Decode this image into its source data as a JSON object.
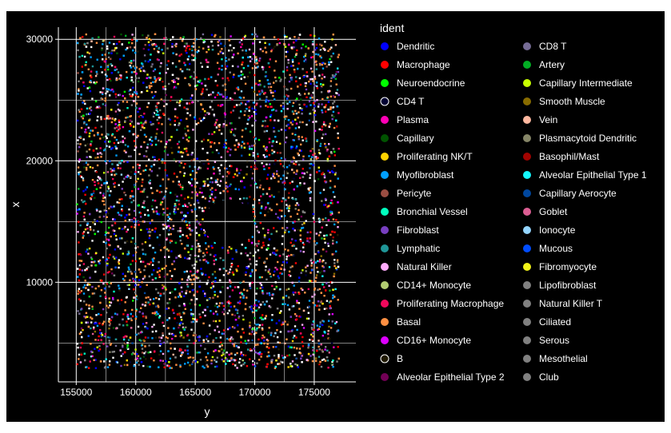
{
  "chart_data": {
    "type": "scatter",
    "title": "",
    "xlabel": "y",
    "ylabel": "x",
    "xlim": [
      153500,
      178500
    ],
    "ylim": [
      1800,
      31000
    ],
    "x_ticks": [
      155000,
      160000,
      165000,
      170000,
      175000
    ],
    "y_ticks": [
      10000,
      20000,
      30000
    ],
    "x_tick_labels": [
      "155000",
      "160000",
      "165000",
      "170000",
      "175000"
    ],
    "y_tick_labels": [
      "10000",
      "20000",
      "30000"
    ],
    "grid": true,
    "background": "#000000",
    "legend_position": "right",
    "legend_title": "ident",
    "data_extent": {
      "x": [
        155000,
        177000
      ],
      "y": [
        3000,
        30500
      ]
    },
    "void_region": {
      "x_center": 167800,
      "y_center": 14900,
      "x_radius": 2100,
      "y_radius": 1900
    },
    "series": [
      {
        "name": "Dendritic",
        "color": "#0000ff"
      },
      {
        "name": "Macrophage",
        "color": "#ff0000"
      },
      {
        "name": "Neuroendocrine",
        "color": "#00ff00"
      },
      {
        "name": "CD4 T",
        "color": "#000033"
      },
      {
        "name": "Plasma",
        "color": "#ff00b6"
      },
      {
        "name": "Capillary",
        "color": "#005300"
      },
      {
        "name": "Proliferating NK/T",
        "color": "#ffd300"
      },
      {
        "name": "Myofibroblast",
        "color": "#009fff"
      },
      {
        "name": "Pericyte",
        "color": "#9a4d42"
      },
      {
        "name": "Bronchial Vessel",
        "color": "#00ffbe"
      },
      {
        "name": "Fibroblast",
        "color": "#783fc1"
      },
      {
        "name": "Lymphatic",
        "color": "#1f9698"
      },
      {
        "name": "Natural Killer",
        "color": "#ffacfd"
      },
      {
        "name": "CD14+ Monocyte",
        "color": "#b1cc71"
      },
      {
        "name": "Proliferating Macrophage",
        "color": "#f1085c"
      },
      {
        "name": "Basal",
        "color": "#fe8f42"
      },
      {
        "name": "CD16+ Monocyte",
        "color": "#dd00ff"
      },
      {
        "name": "B",
        "color": "#201a01"
      },
      {
        "name": "Alveolar Epithelial Type 2",
        "color": "#720055"
      },
      {
        "name": "CD8 T",
        "color": "#766c95"
      },
      {
        "name": "Artery",
        "color": "#02ad24"
      },
      {
        "name": "Capillary Intermediate",
        "color": "#c8ff00"
      },
      {
        "name": "Smooth Muscle",
        "color": "#886c00"
      },
      {
        "name": "Vein",
        "color": "#ffb79f"
      },
      {
        "name": "Plasmacytoid Dendritic",
        "color": "#858567"
      },
      {
        "name": "Basophil/Mast",
        "color": "#a10300"
      },
      {
        "name": "Alveolar Epithelial Type 1",
        "color": "#14f9ff"
      },
      {
        "name": "Capillary Aerocyte",
        "color": "#00479e"
      },
      {
        "name": "Goblet",
        "color": "#dc5e93"
      },
      {
        "name": "Ionocyte",
        "color": "#93d4ff"
      },
      {
        "name": "Mucous",
        "color": "#004cff"
      },
      {
        "name": "Fibromyocyte",
        "color": "#f2f318"
      },
      {
        "name": "Lipofibroblast",
        "color": "#808080"
      },
      {
        "name": "Natural Killer T",
        "color": "#808080"
      },
      {
        "name": "Ciliated",
        "color": "#808080"
      },
      {
        "name": "Serous",
        "color": "#808080"
      },
      {
        "name": "Mesothelial",
        "color": "#808080"
      },
      {
        "name": "Club",
        "color": "#808080"
      }
    ]
  }
}
